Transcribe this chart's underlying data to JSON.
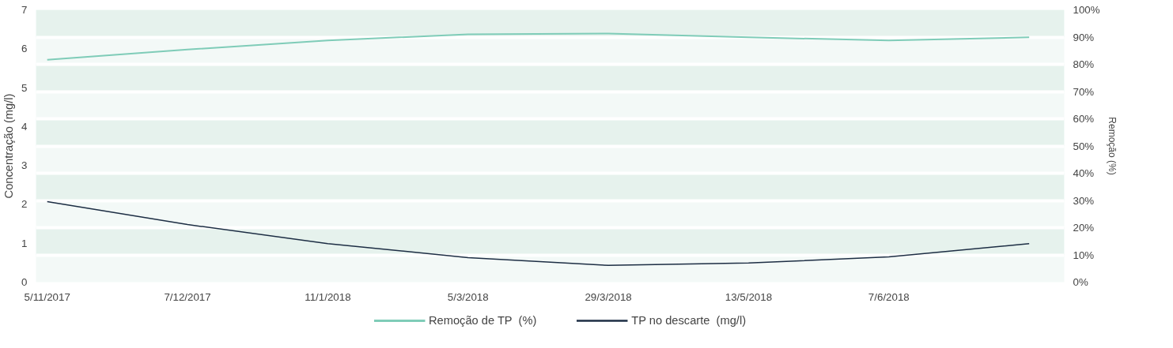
{
  "chart_data": {
    "type": "line",
    "categories": [
      "5/11/2017",
      "7/12/2017",
      "11/1/2018",
      "5/3/2018",
      "29/3/2018",
      "13/5/2018",
      "7/6/2018",
      null
    ],
    "series": [
      {
        "name": "Remoção de TP  (%)",
        "color": "#7fccb8",
        "axis": "y2",
        "values": [
          81.7,
          85.4,
          88.8,
          91.0,
          91.3,
          89.9,
          88.8,
          89.9
        ]
      },
      {
        "name": "TP no descarte  (mg/l)",
        "color": "#1d2e44",
        "values": [
          2.07,
          1.48,
          0.99,
          0.63,
          0.43,
          0.49,
          0.65,
          0.99
        ]
      }
    ],
    "ylabel": "Concentração (mg/l)",
    "y2label": "Remoção (%)",
    "ylim": [
      0,
      7
    ],
    "yticks": [
      0,
      1,
      2,
      3,
      4,
      5,
      6,
      7
    ],
    "y2lim": [
      0,
      100
    ],
    "y2ticks": [
      {
        "value": 0,
        "label": "0%"
      },
      {
        "value": 10,
        "label": "10%"
      },
      {
        "value": 20,
        "label": "20%"
      },
      {
        "value": 30,
        "label": "30%"
      },
      {
        "value": 40,
        "label": "40%"
      },
      {
        "value": 50,
        "label": "50%"
      },
      {
        "value": 60,
        "label": "60%"
      },
      {
        "value": 70,
        "label": "70%"
      },
      {
        "value": 80,
        "label": "80%"
      },
      {
        "value": 90,
        "label": "90%"
      },
      {
        "value": 100,
        "label": "100%"
      }
    ],
    "grid": "y2",
    "legend": "bottom",
    "marker": "none",
    "line_style": "solid"
  }
}
